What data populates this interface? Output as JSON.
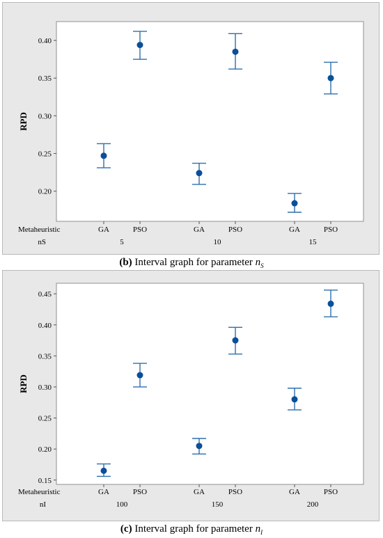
{
  "chart_data": [
    {
      "type": "interval",
      "ylabel": "RPD",
      "ylim": [
        0.16,
        0.425
      ],
      "yticks": [
        0.2,
        0.25,
        0.3,
        0.35,
        0.4
      ],
      "factors": [
        "Metaheuristic",
        "nS"
      ],
      "groups": [
        "5",
        "10",
        "15"
      ],
      "categories": [
        "GA",
        "PSO",
        "GA",
        "PSO",
        "GA",
        "PSO"
      ],
      "points": [
        {
          "group": "5",
          "category": "GA",
          "mean": 0.247,
          "lower": 0.231,
          "upper": 0.263
        },
        {
          "group": "5",
          "category": "PSO",
          "mean": 0.394,
          "lower": 0.375,
          "upper": 0.412
        },
        {
          "group": "10",
          "category": "GA",
          "mean": 0.224,
          "lower": 0.209,
          "upper": 0.237
        },
        {
          "group": "10",
          "category": "PSO",
          "mean": 0.385,
          "lower": 0.362,
          "upper": 0.409
        },
        {
          "group": "15",
          "category": "GA",
          "mean": 0.184,
          "lower": 0.172,
          "upper": 0.197
        },
        {
          "group": "15",
          "category": "PSO",
          "mean": 0.35,
          "lower": 0.329,
          "upper": 0.371
        }
      ],
      "color": "#2c6fad",
      "grid": false
    },
    {
      "type": "interval",
      "ylabel": "RPD",
      "ylim": [
        0.143,
        0.467
      ],
      "yticks": [
        0.15,
        0.2,
        0.25,
        0.3,
        0.35,
        0.4,
        0.45
      ],
      "factors": [
        "Metaheuristic",
        "nI"
      ],
      "groups": [
        "100",
        "150",
        "200"
      ],
      "categories": [
        "GA",
        "PSO",
        "GA",
        "PSO",
        "GA",
        "PSO"
      ],
      "points": [
        {
          "group": "100",
          "category": "GA",
          "mean": 0.165,
          "lower": 0.156,
          "upper": 0.176
        },
        {
          "group": "100",
          "category": "PSO",
          "mean": 0.319,
          "lower": 0.3,
          "upper": 0.338
        },
        {
          "group": "150",
          "category": "GA",
          "mean": 0.205,
          "lower": 0.192,
          "upper": 0.217
        },
        {
          "group": "150",
          "category": "PSO",
          "mean": 0.375,
          "lower": 0.353,
          "upper": 0.396
        },
        {
          "group": "200",
          "category": "GA",
          "mean": 0.28,
          "lower": 0.263,
          "upper": 0.298
        },
        {
          "group": "200",
          "category": "PSO",
          "mean": 0.434,
          "lower": 0.413,
          "upper": 0.456
        }
      ],
      "color": "#2c6fad",
      "grid": false
    }
  ],
  "captions": [
    {
      "letter": "(b)",
      "text": "Interval graph for parameter",
      "symbol": "n",
      "subscript": "S"
    },
    {
      "letter": "(c)",
      "text": "Interval graph for parameter",
      "symbol": "n",
      "subscript": "I"
    }
  ]
}
